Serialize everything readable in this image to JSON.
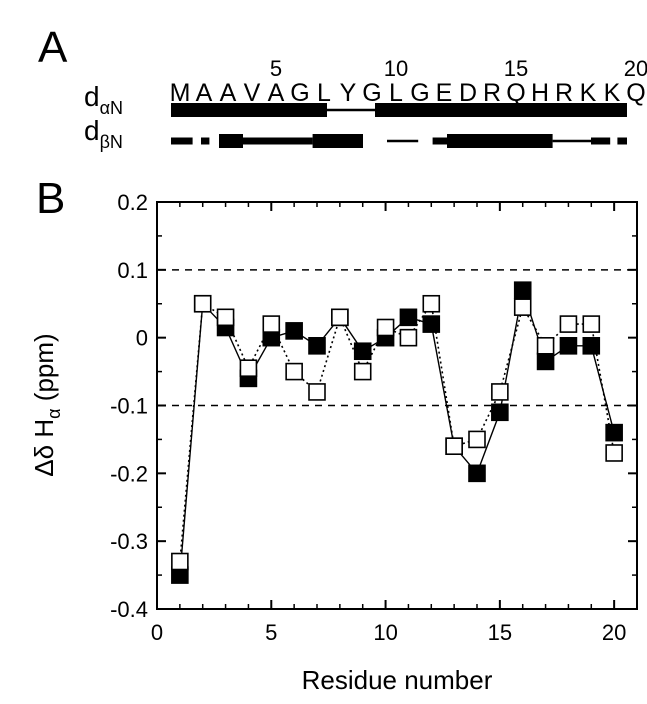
{
  "panel_a": {
    "label": "A",
    "sequence": [
      "M",
      "A",
      "A",
      "V",
      "A",
      "G",
      "L",
      "Y",
      "G",
      "L",
      "G",
      "E",
      "D",
      "R",
      "Q",
      "H",
      "R",
      "K",
      "K",
      "Q"
    ],
    "position_labels": [
      {
        "residue": 5,
        "text": "5"
      },
      {
        "residue": 10,
        "text": "10"
      },
      {
        "residue": 15,
        "text": "15"
      },
      {
        "residue": 20,
        "text": "20"
      }
    ],
    "rows": [
      {
        "main": "d",
        "sub": "αN",
        "segments": [
          {
            "from": 1,
            "to": 7.5,
            "weight": "thick"
          },
          {
            "from": 7.5,
            "to": 9.5,
            "weight": "thin"
          },
          {
            "from": 9.5,
            "to": 20,
            "weight": "thick"
          }
        ]
      },
      {
        "main": "d",
        "sub": "βN",
        "segments": [
          {
            "from": 1,
            "to": 1.9,
            "weight": "medium"
          },
          {
            "from": 2.25,
            "to": 2.6,
            "weight": "medium"
          },
          {
            "from": 3.0,
            "to": 4.0,
            "weight": "thick"
          },
          {
            "from": 4.0,
            "to": 6.9,
            "weight": "medium"
          },
          {
            "from": 6.9,
            "to": 9.0,
            "weight": "thick"
          },
          {
            "from": 10.0,
            "to": 11.3,
            "weight": "thin"
          },
          {
            "from": 11.9,
            "to": 12.5,
            "weight": "medium"
          },
          {
            "from": 12.5,
            "to": 16.9,
            "weight": "thick"
          },
          {
            "from": 16.9,
            "to": 18.5,
            "weight": "thin"
          },
          {
            "from": 18.5,
            "to": 19.3,
            "weight": "medium"
          },
          {
            "from": 19.6,
            "to": 20.0,
            "weight": "medium"
          }
        ]
      }
    ]
  },
  "panel_b_label": "B",
  "chart_data": {
    "type": "line",
    "xlabel": "Residue number",
    "ylabel": {
      "main": "Δδ H",
      "sub": "α",
      "unit": " (ppm)"
    },
    "xlim": [
      0,
      21
    ],
    "ylim": [
      -0.4,
      0.2
    ],
    "xticks": [
      0,
      5,
      10,
      15,
      20
    ],
    "xtick_labels": [
      "0",
      "5",
      "10",
      "15",
      "20"
    ],
    "yticks": [
      -0.4,
      -0.3,
      -0.2,
      -0.1,
      0,
      0.1,
      0.2
    ],
    "ytick_labels": [
      "-0.4",
      "-0.3",
      "-0.2",
      "-0.1",
      "0",
      "0.1",
      "0.2"
    ],
    "reference_lines": [
      0.1,
      -0.1
    ],
    "x": [
      1,
      2,
      3,
      4,
      5,
      6,
      7,
      8,
      9,
      10,
      11,
      12,
      13,
      14,
      15,
      16,
      17,
      18,
      19,
      20
    ],
    "series": [
      {
        "marker": "filled-square",
        "line": "solid",
        "values": [
          -0.35,
          0.05,
          0.015,
          -0.06,
          0.0,
          0.01,
          -0.012,
          0.03,
          -0.02,
          0.0,
          0.03,
          0.02,
          -0.16,
          -0.2,
          -0.11,
          0.07,
          -0.035,
          -0.012,
          -0.012,
          -0.14
        ]
      },
      {
        "marker": "open-square",
        "line": "dotted",
        "values": [
          -0.33,
          0.05,
          0.03,
          -0.045,
          0.02,
          -0.05,
          -0.08,
          0.03,
          -0.05,
          0.015,
          0.0,
          0.05,
          -0.16,
          -0.15,
          -0.08,
          0.045,
          -0.012,
          0.02,
          0.02,
          -0.17
        ]
      }
    ],
    "colors": {
      "ink": "#000000",
      "open_fill": "#ffffff",
      "dash": "#000000"
    }
  }
}
